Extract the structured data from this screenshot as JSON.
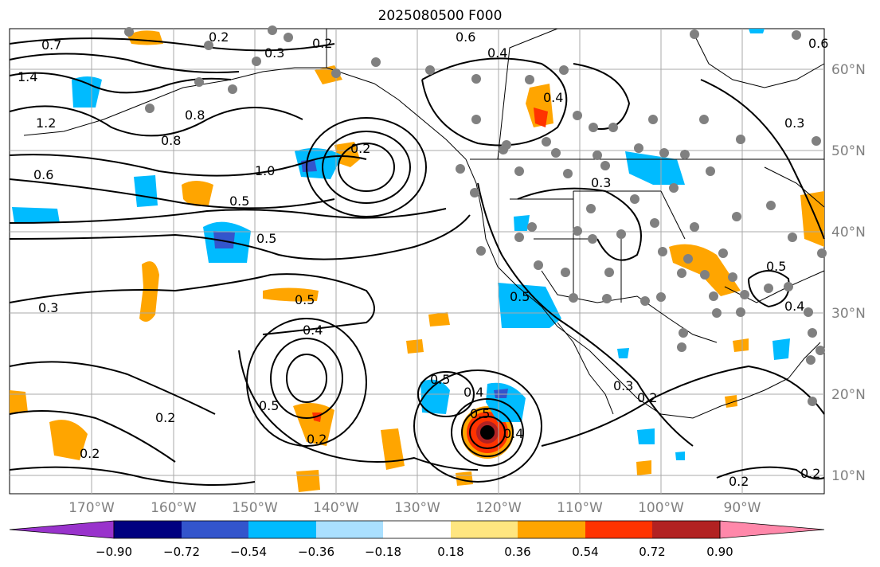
{
  "title": "2025080500 F000",
  "lon_labels": [
    "170°W",
    "160°W",
    "150°W",
    "140°W",
    "130°W",
    "120°W",
    "110°W",
    "100°W",
    "90°W"
  ],
  "lat_labels": [
    "60°N",
    "50°N",
    "40°N",
    "30°N",
    "20°N",
    "10°N"
  ],
  "colorbar": {
    "ticks": [
      "−0.90",
      "−0.72",
      "−0.54",
      "−0.36",
      "−0.18",
      "0.18",
      "0.36",
      "0.54",
      "0.72",
      "0.90"
    ],
    "colors": [
      "#9933cc",
      "#000080",
      "#3355cc",
      "#00bbff",
      "#aae0ff",
      "#ffffff",
      "#ffe680",
      "#ffa500",
      "#ff3300",
      "#b22222",
      "#ff88aa"
    ]
  },
  "contour_labels": [
    "0.2",
    "0.3",
    "0.2",
    "0.6",
    "0.4",
    "0.7",
    "1.4",
    "1.2",
    "0.6",
    "0.8",
    "0.8",
    "0.2",
    "1.0",
    "0.5",
    "0.5",
    "0.3",
    "0.5",
    "0.4",
    "0.5",
    "0.2",
    "0.2",
    "0.5",
    "0.4",
    "0.5",
    "0.4",
    "0.3",
    "0.2",
    "0.2",
    "0.2",
    "0.4",
    "0.3",
    "0.5",
    "0.5",
    "0.3",
    "0.6",
    "0.4",
    "0.2"
  ],
  "colors": {
    "land_lines": "#000000",
    "grid": "#aaaaaa",
    "stations": "#808080"
  }
}
